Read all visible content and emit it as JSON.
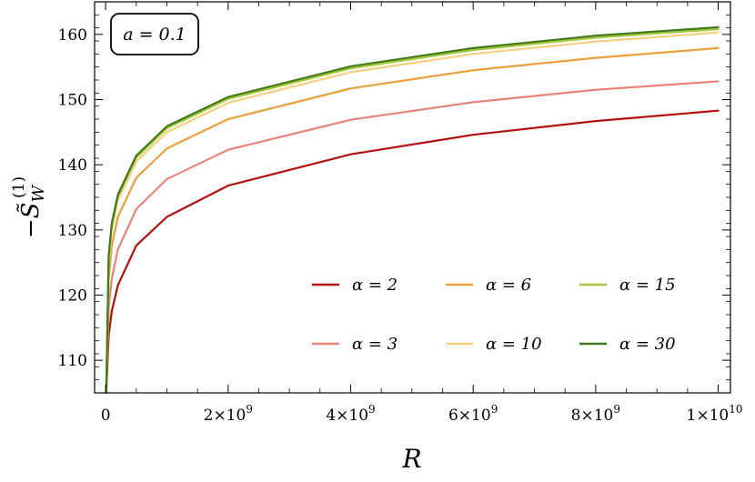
{
  "chart_data": {
    "type": "line",
    "xlabel": "R",
    "ylabel": "−S̃",
    "ylabel_sub": "W",
    "ylabel_sup": "(1)",
    "annotation": "a = 0.1",
    "xlim": [
      -180000000.0,
      10200000000.0
    ],
    "ylim": [
      105,
      165
    ],
    "x_ticks": [
      {
        "value": 0,
        "label": "0"
      },
      {
        "value": 2000000000.0,
        "label": "2×10",
        "exp": "9"
      },
      {
        "value": 4000000000.0,
        "label": "4×10",
        "exp": "9"
      },
      {
        "value": 6000000000.0,
        "label": "6×10",
        "exp": "9"
      },
      {
        "value": 8000000000.0,
        "label": "8×10",
        "exp": "9"
      },
      {
        "value": 10000000000.0,
        "label": "1×10",
        "exp": "10"
      }
    ],
    "y_ticks": [
      {
        "value": 110,
        "label": "110"
      },
      {
        "value": 120,
        "label": "120"
      },
      {
        "value": 130,
        "label": "130"
      },
      {
        "value": 140,
        "label": "140"
      },
      {
        "value": 150,
        "label": "150"
      },
      {
        "value": 160,
        "label": "160"
      }
    ],
    "legend_position": "bottom-right",
    "series": [
      {
        "name": "α = 2",
        "color": "#b30f0f",
        "x": [
          10000000.0,
          50000000.0,
          100000000.0,
          200000000.0,
          500000000.0,
          1000000000.0,
          2000000000.0,
          4000000000.0,
          6000000000.0,
          8000000000.0,
          10000000000.0
        ],
        "y": [
          105.0,
          113.8,
          117.5,
          121.5,
          127.6,
          132.0,
          136.8,
          141.6,
          144.6,
          146.7,
          148.3
        ]
      },
      {
        "name": "α = 3",
        "color": "#e8837a",
        "x": [
          10000000.0,
          50000000.0,
          100000000.0,
          200000000.0,
          500000000.0,
          1000000000.0,
          2000000000.0,
          4000000000.0,
          6000000000.0,
          8000000000.0,
          10000000000.0
        ],
        "y": [
          105.0,
          118.0,
          122.5,
          127.0,
          133.2,
          137.8,
          142.3,
          146.9,
          149.6,
          151.5,
          152.8
        ]
      },
      {
        "name": "α = 6",
        "color": "#e9a03c",
        "x": [
          10000000.0,
          50000000.0,
          100000000.0,
          200000000.0,
          500000000.0,
          1000000000.0,
          2000000000.0,
          4000000000.0,
          6000000000.0,
          8000000000.0,
          10000000000.0
        ],
        "y": [
          105.0,
          122.5,
          127.5,
          132.0,
          138.0,
          142.5,
          147.0,
          151.7,
          154.5,
          156.4,
          157.9
        ]
      },
      {
        "name": "α = 10",
        "color": "#f6cf80",
        "x": [
          10000000.0,
          50000000.0,
          100000000.0,
          200000000.0,
          500000000.0,
          1000000000.0,
          2000000000.0,
          4000000000.0,
          6000000000.0,
          8000000000.0,
          10000000000.0
        ],
        "y": [
          105.0,
          125.0,
          130.0,
          134.5,
          140.5,
          145.0,
          149.5,
          154.2,
          157.0,
          158.9,
          160.3
        ]
      },
      {
        "name": "α = 15",
        "color": "#a8c63a",
        "x": [
          10000000.0,
          50000000.0,
          100000000.0,
          200000000.0,
          500000000.0,
          1000000000.0,
          2000000000.0,
          4000000000.0,
          6000000000.0,
          8000000000.0,
          10000000000.0
        ],
        "y": [
          105.0,
          125.7,
          130.7,
          135.1,
          141.1,
          145.6,
          150.1,
          154.8,
          157.6,
          159.5,
          160.8
        ]
      },
      {
        "name": "α = 30",
        "color": "#3f7a1a",
        "x": [
          10000000.0,
          50000000.0,
          100000000.0,
          200000000.0,
          500000000.0,
          1000000000.0,
          2000000000.0,
          4000000000.0,
          6000000000.0,
          8000000000.0,
          10000000000.0
        ],
        "y": [
          105.0,
          126.1,
          131.0,
          135.4,
          141.4,
          145.9,
          150.4,
          155.1,
          157.9,
          159.8,
          161.1
        ]
      }
    ]
  }
}
